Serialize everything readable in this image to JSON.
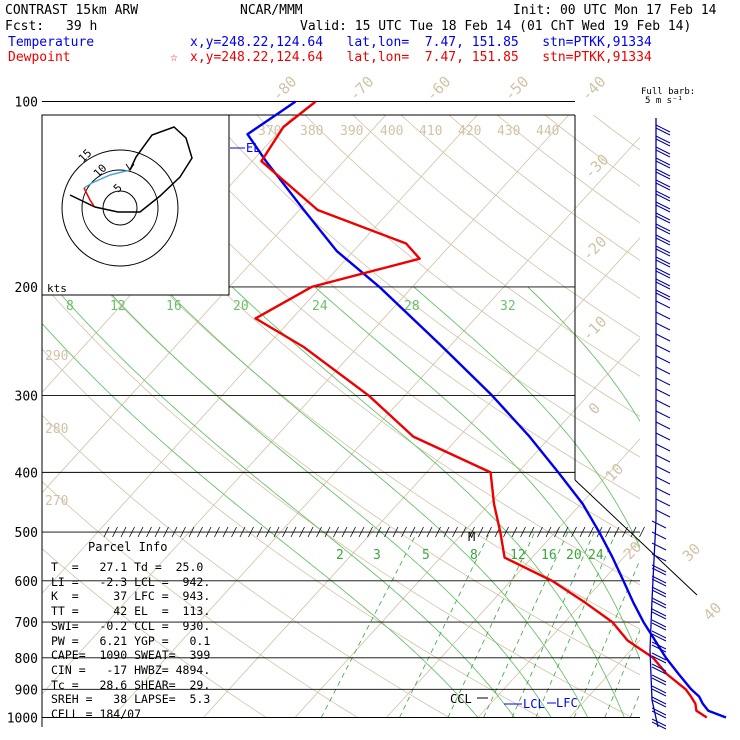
{
  "header": {
    "model": "CONTRAST 15km ARW",
    "org": "NCAR/MMM",
    "init": "Init: 00 UTC Mon 17 Feb 14",
    "fcst_label": "Fcst:",
    "fcst_value": "39 h",
    "valid": "Valid: 15 UTC Tue 18 Feb 14 (01 ChT Wed 19 Feb 14)",
    "temp_label": "Temperature",
    "temp_loc": "x,y=248.22,124.64   lat,lon=  7.47, 151.85   stn=PTKK,91334",
    "dew_label": "Dewpoint",
    "dew_star": "☆",
    "dew_loc": "x,y=248.22,124.64   lat,lon=  7.47, 151.85   stn=PTKK,91334"
  },
  "wind_panel": {
    "title": "Full barb:",
    "subtitle": "5 m s⁻¹"
  },
  "hodograph": {
    "units": "kts",
    "rings": [
      "5",
      "10",
      "15"
    ]
  },
  "parcel_info": {
    "title": "Parcel Info",
    "rows": [
      "T  =   27.1 Td =  25.0",
      "LI =   -2.3 LCL =  942.",
      "K  =     37 LFC =  943.",
      "TT =     42 EL  =  113.",
      "SWI=   -0.2 CCL =  930.",
      "PW =   6.21 YGP =   0.1",
      "CAPE=  1090 SWEAT=  399",
      "CIN =   -17 HWBZ= 4894.",
      "Tc =   28.6 SHEAR=  29.",
      "SREH =   38 LAPSE=  5.3",
      "CELL = 184/07"
    ]
  },
  "chart_data": {
    "type": "skew-t",
    "y_axis": {
      "label": "pressure (hPa)",
      "scale": "log",
      "range": [
        1000,
        100
      ],
      "ticks": [
        100,
        200,
        300,
        400,
        500,
        600,
        700,
        800,
        900,
        1000
      ]
    },
    "isotherm_labels": [
      "-80",
      "-70",
      "-60",
      "-50",
      "-40",
      "-30",
      "-20",
      "-10",
      "0",
      "10",
      "20",
      "30",
      "40"
    ],
    "dry_adiabat_labels": [
      "370",
      "380",
      "390",
      "400",
      "410",
      "420",
      "430",
      "440",
      "290",
      "280",
      "270"
    ],
    "moist_adiabat_labels": [
      "8",
      "12",
      "16",
      "20",
      "24",
      "28",
      "32"
    ],
    "mixing_ratio_labels": [
      "2",
      "3",
      "5",
      "8",
      "12",
      "16",
      "20",
      "24"
    ],
    "annotations": [
      "EL",
      "CCL",
      "LCL",
      "LFC",
      "M"
    ],
    "series": [
      {
        "name": "Temperature",
        "color": "#0000ee",
        "points": [
          [
            1000,
            27.1
          ],
          [
            975,
            24.5
          ],
          [
            950,
            23.2
          ],
          [
            925,
            22.1
          ],
          [
            900,
            20.5
          ],
          [
            850,
            17.6
          ],
          [
            800,
            14.6
          ],
          [
            750,
            11.7
          ],
          [
            700,
            8.6
          ],
          [
            650,
            5.5
          ],
          [
            600,
            2.3
          ],
          [
            550,
            -1.2
          ],
          [
            500,
            -5.2
          ],
          [
            450,
            -9.8
          ],
          [
            400,
            -15.6
          ],
          [
            350,
            -22.3
          ],
          [
            300,
            -30.5
          ],
          [
            250,
            -40.8
          ],
          [
            200,
            -53.6
          ],
          [
            175,
            -61.8
          ],
          [
            150,
            -69.5
          ],
          [
            125,
            -78.5
          ],
          [
            113,
            -83.2
          ],
          [
            105,
            -82.0
          ],
          [
            100,
            -81.2
          ]
        ]
      },
      {
        "name": "Dewpoint",
        "color": "#ee0000",
        "points": [
          [
            1000,
            25.0
          ],
          [
            975,
            23.2
          ],
          [
            950,
            22.4
          ],
          [
            925,
            21.2
          ],
          [
            900,
            19.9
          ],
          [
            850,
            16.3
          ],
          [
            800,
            13.2
          ],
          [
            750,
            8.7
          ],
          [
            700,
            5.2
          ],
          [
            650,
            0.2
          ],
          [
            600,
            -5.5
          ],
          [
            550,
            -13.0
          ],
          [
            500,
            -16.0
          ],
          [
            450,
            -19.5
          ],
          [
            400,
            -23.0
          ],
          [
            350,
            -35.0
          ],
          [
            300,
            -44.0
          ],
          [
            250,
            -56.0
          ],
          [
            225,
            -64.0
          ],
          [
            200,
            -61.0
          ],
          [
            180,
            -52.0
          ],
          [
            170,
            -55.0
          ],
          [
            150,
            -68.0
          ],
          [
            125,
            -79.0
          ],
          [
            110,
            -80.0
          ],
          [
            100,
            -79.0
          ]
        ]
      }
    ]
  },
  "colors": {
    "temperature": "#0000ee",
    "dewpoint": "#ee0000",
    "isotherm": "#d2c2a6",
    "adiabat": "#6cc06c",
    "mixing_ratio": "#3aa63a",
    "wind": "#0000aa"
  }
}
